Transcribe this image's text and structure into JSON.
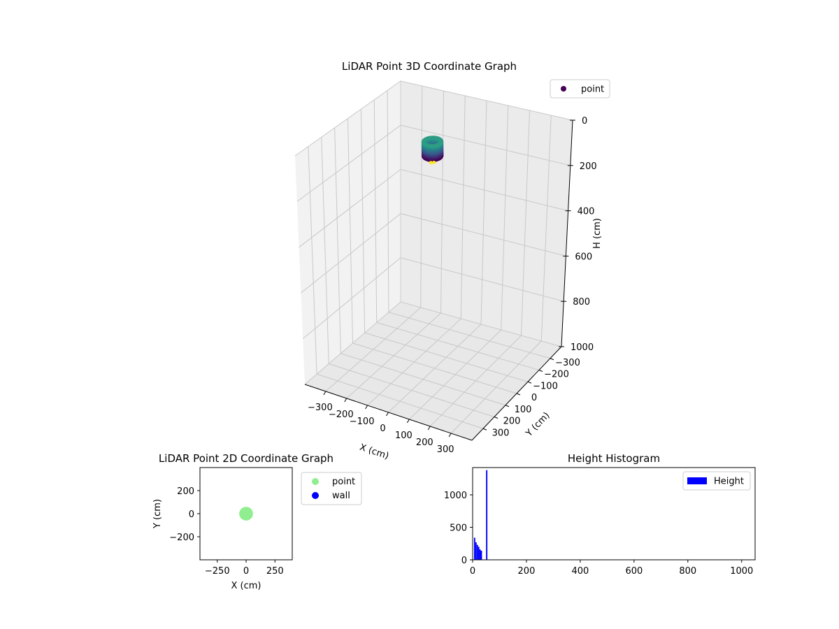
{
  "chart_data": [
    {
      "type": "scatter",
      "title": "LiDAR Point 3D Coordinate Graph",
      "xlabel": "X (cm)",
      "ylabel": "Y (cm)",
      "zlabel": "H (cm)",
      "xlim": [
        -400,
        400
      ],
      "ylim": [
        -400,
        400
      ],
      "zlim": [
        0,
        1000
      ],
      "z_inverted": true,
      "x_ticks": [
        -300,
        -200,
        -100,
        0,
        100,
        200,
        300
      ],
      "y_ticks": [
        -300,
        -200,
        -100,
        0,
        100,
        200,
        300
      ],
      "z_ticks": [
        0,
        200,
        400,
        600,
        800,
        1000
      ],
      "grid": true,
      "legend": {
        "placement": "top-right",
        "entries": [
          "point"
        ]
      },
      "colormap": "viridis",
      "series": [
        {
          "name": "point",
          "color": "#440154",
          "shape": "ring",
          "center_x": 0,
          "center_y": 0,
          "radius_cm": 35,
          "height_range": [
            0,
            60
          ],
          "height_levels": [
            0,
            10,
            20,
            30,
            40,
            50,
            60
          ]
        }
      ]
    },
    {
      "type": "scatter",
      "title": "LiDAR Point 2D Coordinate Graph",
      "xlabel": "X (cm)",
      "ylabel": "Y (cm)",
      "xlim": [
        -400,
        400
      ],
      "ylim": [
        -400,
        400
      ],
      "x_ticks": [
        -250,
        0,
        250
      ],
      "y_ticks": [
        -200,
        0,
        200
      ],
      "grid": false,
      "legend": {
        "placement": "outside-right",
        "entries": [
          "point",
          "wall"
        ]
      },
      "series": [
        {
          "name": "point",
          "color": "#90ee90",
          "shape": "disk",
          "center": [
            0,
            0
          ],
          "radius_cm": 35
        },
        {
          "name": "wall",
          "color": "#0000ff",
          "points": []
        }
      ]
    },
    {
      "type": "bar",
      "title": "Height Histogram",
      "xlabel": "",
      "ylabel": "",
      "xlim": [
        0,
        1050
      ],
      "ylim": [
        0,
        1420
      ],
      "x_ticks": [
        0,
        200,
        400,
        600,
        800,
        1000
      ],
      "y_ticks": [
        0,
        500,
        1000
      ],
      "grid": false,
      "legend": {
        "placement": "top-right",
        "entries": [
          "Height"
        ]
      },
      "series": [
        {
          "name": "Height",
          "color": "#0000ff",
          "bin_edges": [
            0,
            5,
            10,
            15,
            20,
            25,
            30,
            35,
            40,
            45,
            50,
            55
          ],
          "counts": [
            0,
            340,
            270,
            230,
            200,
            160,
            140,
            0,
            0,
            0,
            1380,
            0
          ]
        }
      ]
    }
  ],
  "axes_text": {
    "x3_label": "X (cm)",
    "y3_label": "Y (cm)",
    "z3_label": "H (cm)"
  }
}
